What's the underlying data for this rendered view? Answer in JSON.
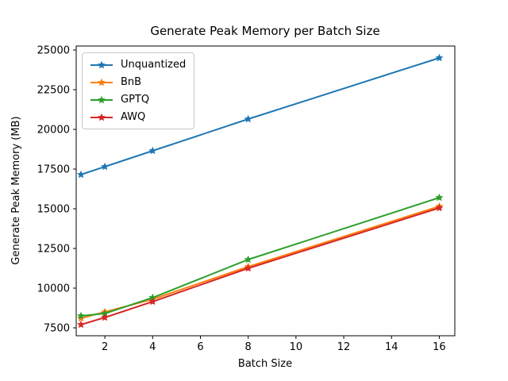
{
  "chart_data": {
    "type": "line",
    "title": "Generate Peak Memory per Batch Size",
    "xlabel": "Batch Size",
    "ylabel": "Generate Peak Memory (MB)",
    "x": [
      1,
      2,
      4,
      8,
      16
    ],
    "series": [
      {
        "name": "Unquantized",
        "color": "#1f77b4",
        "values": [
          17150,
          17650,
          18650,
          20650,
          24500
        ]
      },
      {
        "name": "BnB",
        "color": "#ff7f0e",
        "values": [
          8100,
          8500,
          9300,
          11350,
          15150
        ]
      },
      {
        "name": "GPTQ",
        "color": "#2ca02c",
        "values": [
          8250,
          8400,
          9400,
          11800,
          15700
        ]
      },
      {
        "name": "AWQ",
        "color": "#d62728",
        "values": [
          7700,
          8150,
          9150,
          11250,
          15050
        ]
      }
    ],
    "x_ticks": [
      2,
      4,
      6,
      8,
      10,
      12,
      14,
      16
    ],
    "y_ticks": [
      7500,
      10000,
      12500,
      15000,
      17500,
      20000,
      22500,
      25000
    ],
    "xlim": [
      0.8,
      16.65
    ],
    "ylim": [
      7000,
      25250
    ],
    "grid": false,
    "marker": "star",
    "legend_position": "upper-left",
    "axis_color": "#000000",
    "background_color": "#ffffff"
  }
}
